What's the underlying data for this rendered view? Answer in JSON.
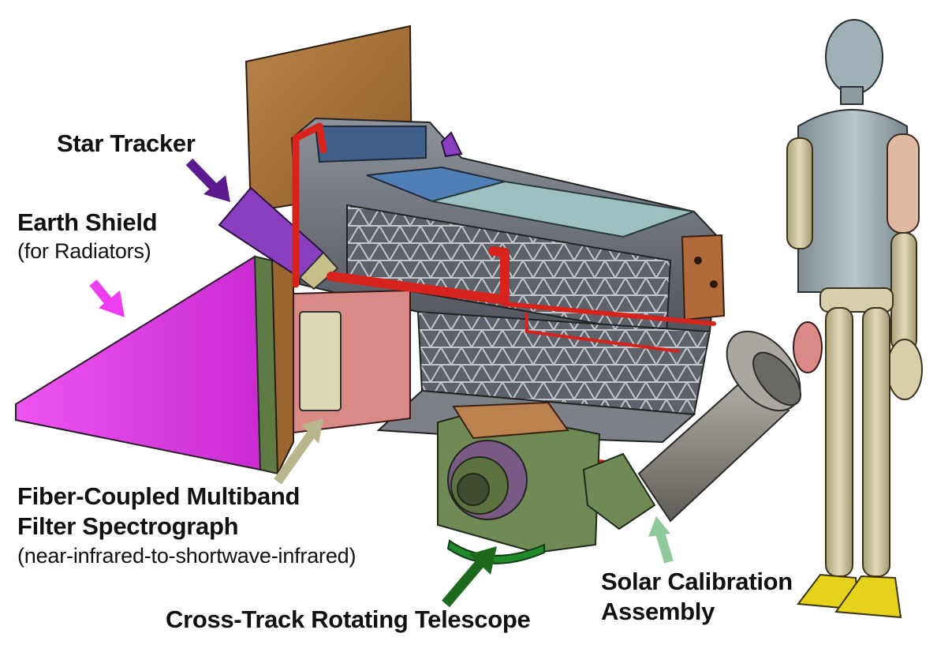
{
  "labels": {
    "star_tracker": "Star Tracker",
    "earth_shield": "Earth Shield",
    "earth_shield_note": "(for Radiators)",
    "fiber_line1": "Fiber-Coupled Multiband",
    "fiber_line2": "Filter Spectrograph",
    "fiber_note": "(near-infrared-to-shortwave-infrared)",
    "telescope": "Cross-Track Rotating Telescope",
    "solar_line1": "Solar Calibration",
    "solar_line2": "Assembly"
  },
  "colors": {
    "star_tracker_arrow": "#5b1a8e",
    "earth_shield_arrow": "#ee3df0",
    "fiber_arrow": "#b9b58d",
    "telescope_arrow": "#1e6a1c",
    "solar_arrow": "#8fc99a",
    "earth_shield": "#e23de8",
    "radiator_panel": "#b07a3a",
    "spectrograph_box": "#d98a87",
    "instrument_frame": "#6a6e78",
    "star_tracker": "#8a3fc0",
    "coolant_pipe": "#d8231c",
    "telescope_housing": "#6f8a55",
    "mannequin_torso": "#9aa7ad",
    "mannequin_limbs": "#cfc5a0",
    "mannequin_shoes": "#e6d21a"
  }
}
